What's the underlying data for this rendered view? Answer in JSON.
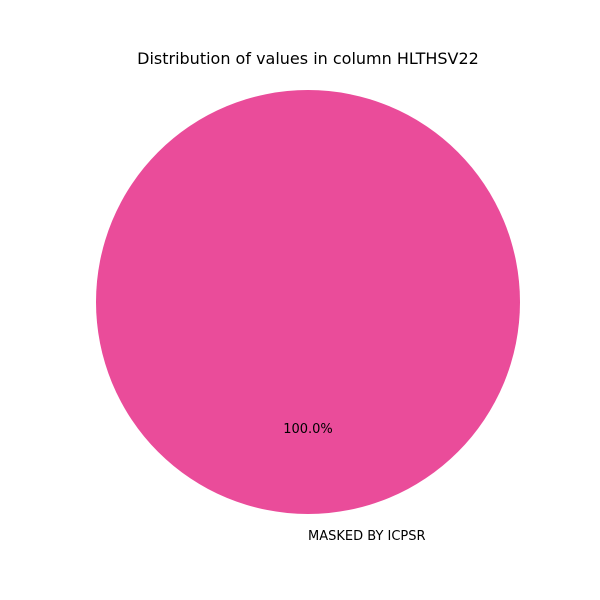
{
  "chart_data": {
    "type": "pie",
    "title": "Distribution of values in column HLTHSV22",
    "slices": [
      {
        "label": "MASKED BY ICPSR",
        "value": 100.0,
        "percent_label": "100.0%",
        "color": "#EA4C9A"
      }
    ]
  }
}
